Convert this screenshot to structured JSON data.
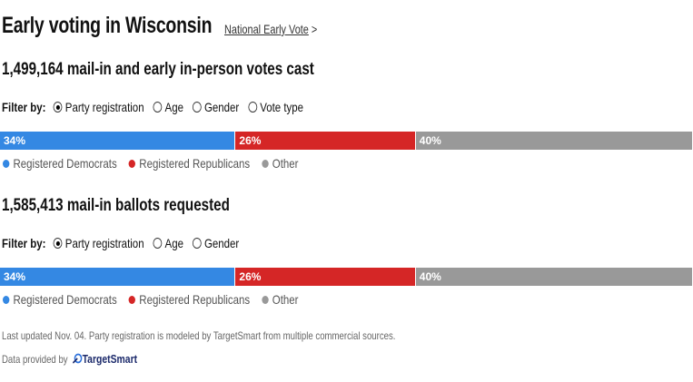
{
  "header": {
    "title": "Early voting in Wisconsin",
    "link": "National Early Vote",
    "link_arrow": ">"
  },
  "colors": {
    "democrats": "#3488e3",
    "republicans": "#d52626",
    "other": "#999999"
  },
  "sections": [
    {
      "count": "1,499,164",
      "label": "mail-in and early in-person votes cast",
      "filter_label": "Filter by:",
      "options": [
        "Party registration",
        "Age",
        "Gender",
        "Vote type"
      ],
      "selected": "Party registration",
      "bar": [
        {
          "pct": 34,
          "label": "34%"
        },
        {
          "pct": 26,
          "label": "26%"
        },
        {
          "pct": 40,
          "label": "40%"
        }
      ],
      "legend": [
        "Registered Democrats",
        "Registered Republicans",
        "Other"
      ]
    },
    {
      "count": "1,585,413",
      "label": "mail-in ballots requested",
      "filter_label": "Filter by:",
      "options": [
        "Party registration",
        "Age",
        "Gender"
      ],
      "selected": "Party registration",
      "bar": [
        {
          "pct": 34,
          "label": "34%"
        },
        {
          "pct": 26,
          "label": "26%"
        },
        {
          "pct": 40,
          "label": "40%"
        }
      ],
      "legend": [
        "Registered Democrats",
        "Registered Republicans",
        "Other"
      ]
    }
  ],
  "footer": {
    "note": "Last updated Nov. 04. Party registration is modeled by TargetSmart from multiple commercial sources.",
    "provided_by": "Data provided by",
    "logo_text": "TargetSmart"
  }
}
